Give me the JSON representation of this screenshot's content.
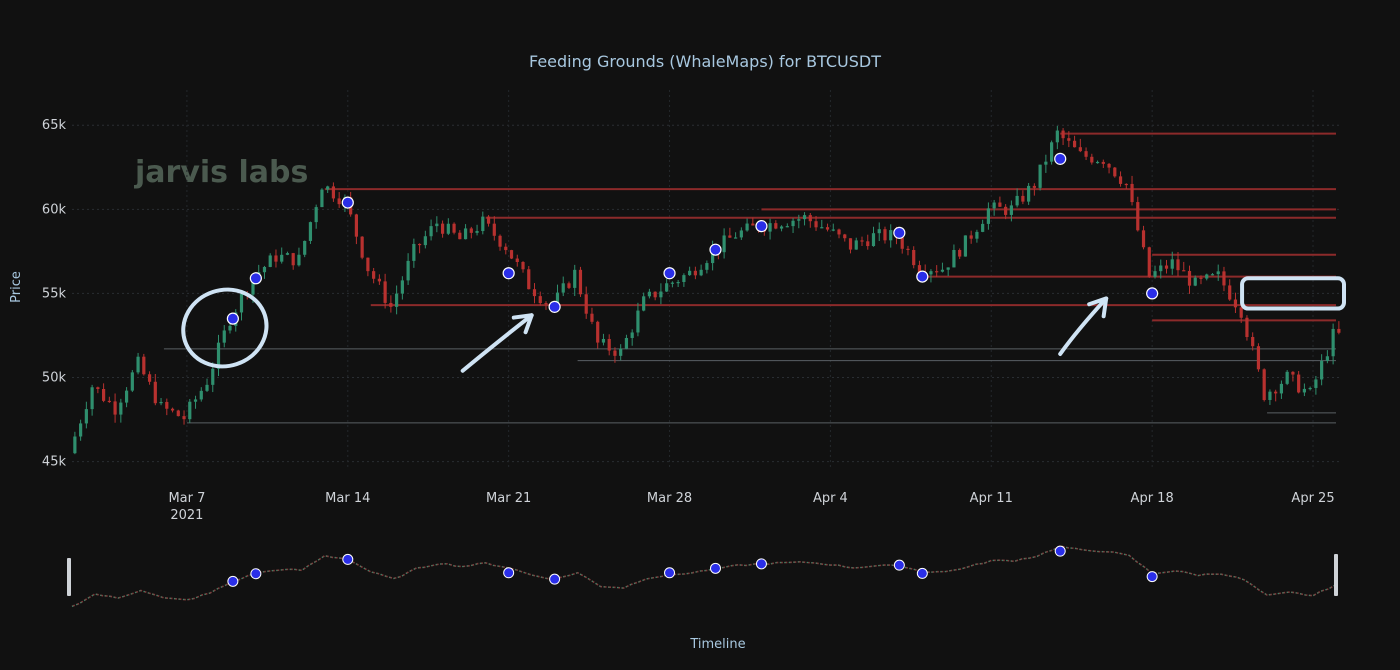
{
  "chart_data": {
    "type": "candlestick",
    "title": "Feeding Grounds (WhaleMaps) for BTCUSDT",
    "ylabel": "Price",
    "xlabel": "Timeline",
    "watermark": "jarvis labs",
    "ylim": [
      44500,
      66500
    ],
    "x_range": [
      "2021-03-02",
      "2021-04-26"
    ],
    "y_ticks": [
      {
        "value": 45000,
        "label": "45k"
      },
      {
        "value": 50000,
        "label": "50k"
      },
      {
        "value": 55000,
        "label": "55k"
      },
      {
        "value": 60000,
        "label": "60k"
      },
      {
        "value": 65000,
        "label": "65k"
      }
    ],
    "x_ticks": [
      {
        "date": "2021-03-07",
        "label": "Mar 7",
        "sublabel": "2021"
      },
      {
        "date": "2021-03-14",
        "label": "Mar 14",
        "sublabel": ""
      },
      {
        "date": "2021-03-21",
        "label": "Mar 21",
        "sublabel": ""
      },
      {
        "date": "2021-03-28",
        "label": "Mar 28",
        "sublabel": ""
      },
      {
        "date": "2021-04-04",
        "label": "Apr 4",
        "sublabel": ""
      },
      {
        "date": "2021-04-11",
        "label": "Apr 11",
        "sublabel": ""
      },
      {
        "date": "2021-04-18",
        "label": "Apr 18",
        "sublabel": ""
      },
      {
        "date": "2021-04-25",
        "label": "Apr 25",
        "sublabel": ""
      }
    ],
    "price_path": [
      [
        "2021-03-02",
        45500
      ],
      [
        "2021-03-03",
        49500
      ],
      [
        "2021-03-04",
        48200
      ],
      [
        "2021-03-05",
        50800
      ],
      [
        "2021-03-06",
        48200
      ],
      [
        "2021-03-07",
        47600
      ],
      [
        "2021-03-08",
        49800
      ],
      [
        "2021-03-09",
        53500
      ],
      [
        "2021-03-10",
        56000
      ],
      [
        "2021-03-11",
        57200
      ],
      [
        "2021-03-12",
        57000
      ],
      [
        "2021-03-13",
        61500
      ],
      [
        "2021-03-14",
        60500
      ],
      [
        "2021-03-15",
        56500
      ],
      [
        "2021-03-16",
        54200
      ],
      [
        "2021-03-17",
        57500
      ],
      [
        "2021-03-18",
        59200
      ],
      [
        "2021-03-19",
        58200
      ],
      [
        "2021-03-20",
        59200
      ],
      [
        "2021-03-21",
        57800
      ],
      [
        "2021-03-22",
        55500
      ],
      [
        "2021-03-23",
        54200
      ],
      [
        "2021-03-24",
        56200
      ],
      [
        "2021-03-25",
        52000
      ],
      [
        "2021-03-26",
        51500
      ],
      [
        "2021-03-27",
        54500
      ],
      [
        "2021-03-28",
        55500
      ],
      [
        "2021-03-29",
        56200
      ],
      [
        "2021-03-30",
        57500
      ],
      [
        "2021-03-31",
        58500
      ],
      [
        "2021-04-01",
        59000
      ],
      [
        "2021-04-02",
        59300
      ],
      [
        "2021-04-03",
        59500
      ],
      [
        "2021-04-04",
        58800
      ],
      [
        "2021-04-05",
        57800
      ],
      [
        "2021-04-06",
        58400
      ],
      [
        "2021-04-07",
        58400
      ],
      [
        "2021-04-08",
        56600
      ],
      [
        "2021-04-09",
        56500
      ],
      [
        "2021-04-10",
        58000
      ],
      [
        "2021-04-11",
        60000
      ],
      [
        "2021-04-12",
        60000
      ],
      [
        "2021-04-13",
        61500
      ],
      [
        "2021-04-14",
        64500
      ],
      [
        "2021-04-15",
        63200
      ],
      [
        "2021-04-16",
        63000
      ],
      [
        "2021-04-17",
        61500
      ],
      [
        "2021-04-18",
        56000
      ],
      [
        "2021-04-19",
        56800
      ],
      [
        "2021-04-20",
        55500
      ],
      [
        "2021-04-21",
        56000
      ],
      [
        "2021-04-22",
        54000
      ],
      [
        "2021-04-23",
        49000
      ],
      [
        "2021-04-24",
        50000
      ],
      [
        "2021-04-25",
        49000
      ],
      [
        "2021-04-26",
        52500
      ]
    ],
    "whale_markers": [
      {
        "date": "2021-03-09",
        "price": 53500
      },
      {
        "date": "2021-03-10",
        "price": 55900
      },
      {
        "date": "2021-03-14",
        "price": 60400
      },
      {
        "date": "2021-03-21",
        "price": 56200
      },
      {
        "date": "2021-03-23",
        "price": 54200
      },
      {
        "date": "2021-03-28",
        "price": 56200
      },
      {
        "date": "2021-03-30",
        "price": 57600
      },
      {
        "date": "2021-04-01",
        "price": 59000
      },
      {
        "date": "2021-04-07",
        "price": 58600
      },
      {
        "date": "2021-04-08",
        "price": 56000
      },
      {
        "date": "2021-04-14",
        "price": 63000
      },
      {
        "date": "2021-04-18",
        "price": 55000
      }
    ],
    "support_lines": [
      {
        "start": "2021-03-13",
        "price": 61200
      },
      {
        "start": "2021-03-15",
        "price": 54300
      },
      {
        "start": "2021-03-20",
        "price": 59500
      },
      {
        "start": "2021-04-01",
        "price": 60000
      },
      {
        "start": "2021-04-08",
        "price": 56000
      },
      {
        "start": "2021-04-14",
        "price": 64500
      },
      {
        "start": "2021-04-18",
        "price": 57300
      },
      {
        "start": "2021-04-18",
        "price": 53400
      }
    ],
    "reference_lines": [
      {
        "start": "2021-03-06",
        "price": 51700
      },
      {
        "start": "2021-03-24",
        "price": 51000
      },
      {
        "start": "2021-03-07",
        "price": 47300
      },
      {
        "start": "2021-04-23",
        "price": 47900
      }
    ],
    "annotations": [
      {
        "type": "circle",
        "date": "2021-03-09",
        "price": 53300
      },
      {
        "type": "arrow",
        "from": [
          "2021-03-19",
          50400
        ],
        "to": [
          "2021-03-22",
          53700
        ]
      },
      {
        "type": "arrow",
        "from": [
          "2021-04-14",
          51400
        ],
        "to": [
          "2021-04-16",
          54700
        ]
      },
      {
        "type": "box",
        "from": [
          "2021-04-22",
          55900
        ],
        "to": [
          "2021-04-26",
          54100
        ]
      }
    ]
  }
}
